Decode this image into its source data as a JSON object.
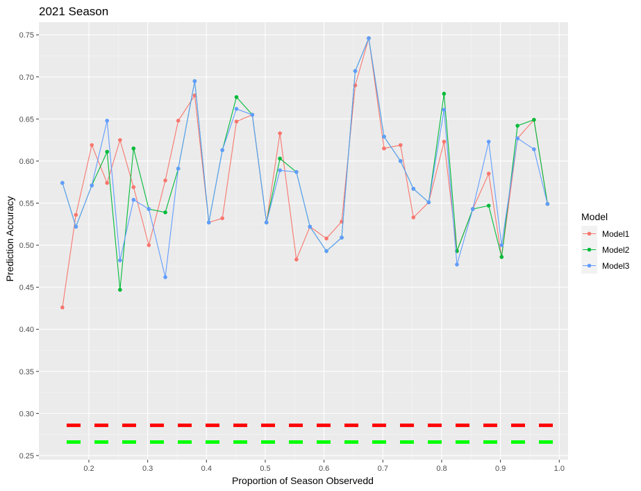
{
  "chart_data": {
    "type": "line",
    "title": "2021 Season",
    "xlabel": "Proportion of Season Observedd",
    "ylabel": "Prediction Accuracy",
    "xlim": [
      0.115,
      1.015
    ],
    "ylim": [
      0.245,
      0.765
    ],
    "x_ticks": [
      0.2,
      0.3,
      0.4,
      0.5,
      0.6,
      0.7,
      0.8,
      0.9,
      1.0
    ],
    "x_tick_labels": [
      "0.2",
      "0.3",
      "0.4",
      "0.5",
      "0.6",
      "0.7",
      "0.8",
      "0.9",
      "1.0"
    ],
    "y_ticks": [
      0.25,
      0.3,
      0.35,
      0.4,
      0.45,
      0.5,
      0.55,
      0.6,
      0.65,
      0.7,
      0.75
    ],
    "y_tick_labels": [
      "0.25",
      "0.30",
      "0.35",
      "0.40",
      "0.45",
      "0.50",
      "0.55",
      "0.60",
      "0.65",
      "0.70",
      "0.75"
    ],
    "grid": true,
    "legend_title": "Model",
    "legend_position": "right",
    "series": [
      {
        "name": "Model1",
        "color": "#F8766D",
        "points": [
          [
            0.155,
            0.426
          ],
          [
            0.178,
            0.536
          ],
          [
            0.205,
            0.619
          ],
          [
            0.231,
            0.574
          ],
          [
            0.253,
            0.625
          ],
          [
            0.276,
            0.569
          ],
          [
            0.302,
            0.5
          ],
          [
            0.33,
            0.577
          ],
          [
            0.352,
            0.648
          ],
          [
            0.38,
            0.678
          ],
          [
            0.404,
            0.527
          ],
          [
            0.427,
            0.532
          ],
          [
            0.451,
            0.647
          ],
          [
            0.478,
            0.655
          ],
          [
            0.502,
            0.527
          ],
          [
            0.525,
            0.633
          ],
          [
            0.553,
            0.483
          ],
          [
            0.576,
            0.522
          ],
          [
            0.604,
            0.508
          ],
          [
            0.63,
            0.528
          ],
          [
            0.653,
            0.69
          ],
          [
            0.676,
            0.746
          ],
          [
            0.702,
            0.615
          ],
          [
            0.73,
            0.619
          ],
          [
            0.752,
            0.533
          ],
          [
            0.778,
            0.551
          ],
          [
            0.804,
            0.623
          ],
          [
            0.826,
            0.493
          ],
          [
            0.853,
            0.543
          ],
          [
            0.88,
            0.585
          ],
          [
            0.902,
            0.486
          ],
          [
            0.929,
            0.627
          ],
          [
            0.957,
            0.649
          ],
          [
            0.98,
            0.549
          ]
        ]
      },
      {
        "name": "Model2",
        "color": "#00BA38",
        "points": [
          [
            0.155,
            0.574
          ],
          [
            0.178,
            0.522
          ],
          [
            0.205,
            0.571
          ],
          [
            0.231,
            0.611
          ],
          [
            0.253,
            0.447
          ],
          [
            0.276,
            0.615
          ],
          [
            0.302,
            0.543
          ],
          [
            0.33,
            0.539
          ],
          [
            0.352,
            0.591
          ],
          [
            0.38,
            0.695
          ],
          [
            0.404,
            0.527
          ],
          [
            0.427,
            0.613
          ],
          [
            0.451,
            0.676
          ],
          [
            0.478,
            0.655
          ],
          [
            0.502,
            0.527
          ],
          [
            0.525,
            0.603
          ],
          [
            0.553,
            0.587
          ],
          [
            0.576,
            0.522
          ],
          [
            0.604,
            0.493
          ],
          [
            0.63,
            0.509
          ],
          [
            0.653,
            0.707
          ],
          [
            0.676,
            0.746
          ],
          [
            0.702,
            0.629
          ],
          [
            0.73,
            0.6
          ],
          [
            0.752,
            0.567
          ],
          [
            0.778,
            0.551
          ],
          [
            0.804,
            0.68
          ],
          [
            0.826,
            0.493
          ],
          [
            0.853,
            0.543
          ],
          [
            0.88,
            0.547
          ],
          [
            0.902,
            0.486
          ],
          [
            0.929,
            0.642
          ],
          [
            0.957,
            0.649
          ],
          [
            0.98,
            0.549
          ]
        ]
      },
      {
        "name": "Model3",
        "color": "#619CFF",
        "points": [
          [
            0.155,
            0.574
          ],
          [
            0.178,
            0.522
          ],
          [
            0.205,
            0.571
          ],
          [
            0.231,
            0.648
          ],
          [
            0.253,
            0.482
          ],
          [
            0.276,
            0.554
          ],
          [
            0.302,
            0.543
          ],
          [
            0.33,
            0.462
          ],
          [
            0.352,
            0.591
          ],
          [
            0.38,
            0.695
          ],
          [
            0.404,
            0.527
          ],
          [
            0.427,
            0.613
          ],
          [
            0.451,
            0.662
          ],
          [
            0.478,
            0.655
          ],
          [
            0.502,
            0.527
          ],
          [
            0.525,
            0.589
          ],
          [
            0.553,
            0.587
          ],
          [
            0.576,
            0.522
          ],
          [
            0.604,
            0.493
          ],
          [
            0.63,
            0.509
          ],
          [
            0.653,
            0.707
          ],
          [
            0.676,
            0.746
          ],
          [
            0.702,
            0.629
          ],
          [
            0.73,
            0.6
          ],
          [
            0.752,
            0.567
          ],
          [
            0.778,
            0.551
          ],
          [
            0.804,
            0.661
          ],
          [
            0.826,
            0.477
          ],
          [
            0.853,
            0.543
          ],
          [
            0.88,
            0.623
          ],
          [
            0.902,
            0.5
          ],
          [
            0.929,
            0.627
          ],
          [
            0.957,
            0.614
          ],
          [
            0.98,
            0.549
          ]
        ]
      }
    ],
    "reference_lines": [
      {
        "y": 0.286,
        "color": "#FF0000",
        "style": "dashed"
      },
      {
        "y": 0.266,
        "color": "#00FF00",
        "style": "dashed"
      }
    ]
  }
}
